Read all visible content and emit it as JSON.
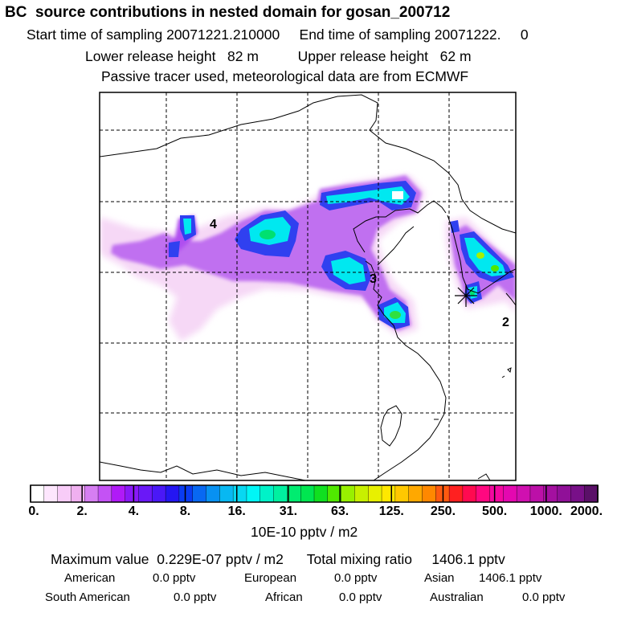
{
  "header": {
    "title": "BC  source contributions in nested domain for gosan_200712",
    "sampling_line": "Start time of sampling 20071221.210000     End time of sampling 20071222.     0",
    "release_line": "Lower release height   82 m          Upper release height   62 m",
    "tracer_line": "Passive tracer used, meteorological data are from ECMWF"
  },
  "chart_data": {
    "type": "heatmap",
    "title": "BC  source contributions in nested domain for gosan_200712",
    "colorbar": {
      "ticks": [
        "0.",
        "2.",
        "4.",
        "8.",
        "16.",
        "31.",
        "63.",
        "125.",
        "250.",
        "500.",
        "1000.",
        "2000."
      ],
      "unit": "10E-10 pptv / m2",
      "colors": [
        "#ffffff",
        "#fde6fd",
        "#f8ccf8",
        "#f0b0f0",
        "#d67ef2",
        "#c452f5",
        "#b01af7",
        "#8a19f7",
        "#6a18f7",
        "#4a18f7",
        "#2416f2",
        "#0a3cf2",
        "#0868f2",
        "#0891f2",
        "#08b8f2",
        "#08d8f2",
        "#00f6f6",
        "#00f2c8",
        "#00f0a0",
        "#00ec70",
        "#00e650",
        "#10e020",
        "#50e800",
        "#98f000",
        "#c8f000",
        "#e8f000",
        "#ffe800",
        "#ffc800",
        "#ffa800",
        "#ff8800",
        "#ff5a10",
        "#ff2020",
        "#ff0a50",
        "#ff0880",
        "#f408a0",
        "#e408b0",
        "#d010b0",
        "#bc10a8",
        "#a410a0",
        "#901098",
        "#781088",
        "#5a1068"
      ]
    },
    "source_labels": [
      "4",
      "3",
      "2"
    ],
    "receptor": "gosan",
    "grid": "dashed"
  },
  "footer": {
    "max_line": "Maximum value  0.229E-07 pptv / m2      Total mixing ratio     1406.1 pptv",
    "row1": [
      {
        "label": "American",
        "value": "0.0 pptv"
      },
      {
        "label": "European",
        "value": "0.0 pptv"
      },
      {
        "label": "Asian",
        "value": "1406.1 pptv"
      }
    ],
    "row2": [
      {
        "label": "South American",
        "value": "0.0 pptv"
      },
      {
        "label": "African",
        "value": "0.0 pptv"
      },
      {
        "label": "Australian",
        "value": "0.0 pptv"
      }
    ]
  }
}
